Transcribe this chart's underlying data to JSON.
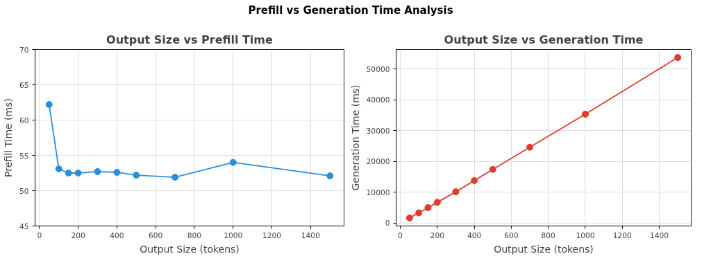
{
  "chart_data": [
    {
      "type": "line",
      "title": "Output Size vs Prefill Time",
      "xlabel": "Output Size (tokens)",
      "ylabel": "Prefill Time (ms)",
      "annotations": [
        "Prefill vs Generation Time Analysis"
      ],
      "x": [
        50,
        100,
        150,
        200,
        300,
        400,
        500,
        700,
        1000,
        1500
      ],
      "series": [
        {
          "color": "#2a8dd8",
          "values": [
            62.2,
            53.1,
            52.5,
            52.5,
            52.7,
            52.6,
            52.2,
            51.9,
            54.0,
            52.1
          ]
        }
      ],
      "xlim": [
        -22.5,
        1572.5
      ],
      "xticks": [
        0,
        200,
        400,
        600,
        800,
        1000,
        1200,
        1400
      ],
      "ylim": [
        45,
        70
      ],
      "yticks": [
        45,
        50,
        55,
        60,
        65,
        70
      ],
      "grid": true,
      "marker": "circle",
      "line_style": "solid"
    },
    {
      "type": "line",
      "title": "Output Size vs Generation Time",
      "xlabel": "Output Size (tokens)",
      "ylabel": "Generation Time (ms)",
      "x": [
        50,
        100,
        150,
        200,
        300,
        400,
        500,
        700,
        1000,
        1500
      ],
      "series": [
        {
          "color": "#e03b2b",
          "values": [
            1640,
            3290,
            5000,
            6710,
            10140,
            13790,
            17430,
            24640,
            35360,
            53790
          ]
        }
      ],
      "xlim": [
        -22.5,
        1572.5
      ],
      "xticks": [
        0,
        200,
        400,
        600,
        800,
        1000,
        1200,
        1400
      ],
      "ylim": [
        -970,
        56400
      ],
      "yticks": [
        0,
        10000,
        20000,
        30000,
        40000,
        50000
      ],
      "grid": true,
      "marker": "circle",
      "line_style": "solid"
    }
  ]
}
